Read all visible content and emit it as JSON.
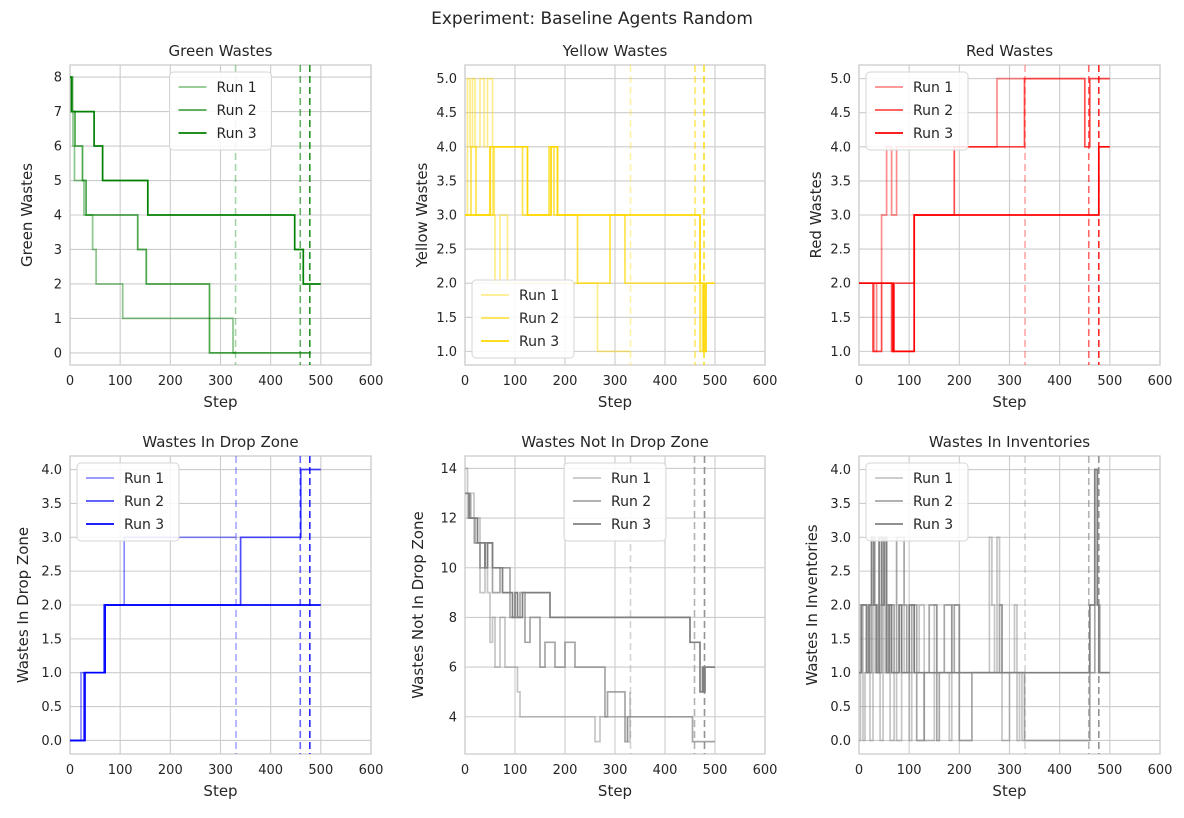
{
  "figure": {
    "suptitle": "Experiment: Baseline Agents Random"
  },
  "chart_data": [
    {
      "type": "line",
      "title": "Green Wastes",
      "xlabel": "Step",
      "ylabel": "Green Wastes",
      "xlim": [
        0,
        600
      ],
      "ylim": [
        -0.35,
        8.35
      ],
      "xticks": [
        0,
        100,
        200,
        300,
        400,
        500,
        600
      ],
      "yticks": [
        0,
        1,
        2,
        3,
        4,
        5,
        6,
        7,
        8
      ],
      "ytick_labels": [
        "0",
        "1",
        "2",
        "3",
        "4",
        "5",
        "6",
        "7",
        "8"
      ],
      "grid": true,
      "legend_position": "top-center",
      "series": [
        {
          "name": "Run 1",
          "color": "#008000",
          "opacity": 0.45,
          "x": [
            0,
            3,
            6,
            9,
            22,
            28,
            35,
            45,
            52,
            105,
            135,
            160,
            280,
            325,
            330
          ],
          "y": [
            8,
            7,
            6,
            5,
            5,
            4,
            4,
            3,
            2,
            1,
            1,
            1,
            1,
            0,
            0
          ]
        },
        {
          "name": "Run 2",
          "color": "#008000",
          "opacity": 0.7,
          "x": [
            0,
            5,
            10,
            20,
            25,
            32,
            135,
            152,
            278,
            460,
            480
          ],
          "y": [
            8,
            7,
            6,
            6,
            5,
            4,
            3,
            2,
            0,
            0,
            0
          ]
        },
        {
          "name": "Run 3",
          "color": "#008000",
          "opacity": 1.0,
          "x": [
            0,
            3,
            48,
            60,
            65,
            155,
            448,
            465,
            478,
            500
          ],
          "y": [
            8,
            7,
            6,
            6,
            5,
            4,
            3,
            2,
            2,
            2
          ]
        }
      ],
      "vlines": [
        {
          "x": 330,
          "color": "#008000",
          "opacity": 0.35
        },
        {
          "x": 459,
          "color": "#008000",
          "opacity": 0.6
        },
        {
          "x": 478,
          "color": "#008000",
          "opacity": 0.85
        }
      ]
    },
    {
      "type": "line",
      "title": "Yellow Wastes",
      "xlabel": "Step",
      "ylabel": "Yellow Wastes",
      "xlim": [
        0,
        600
      ],
      "ylim": [
        0.8,
        5.2
      ],
      "xticks": [
        0,
        100,
        200,
        300,
        400,
        500,
        600
      ],
      "yticks": [
        1.0,
        1.5,
        2.0,
        2.5,
        3.0,
        3.5,
        4.0,
        4.5,
        5.0
      ],
      "ytick_labels": [
        "1.0",
        "1.5",
        "2.0",
        "2.5",
        "3.0",
        "3.5",
        "4.0",
        "4.5",
        "5.0"
      ],
      "grid": true,
      "legend_position": "lower-left",
      "series": [
        {
          "name": "Run 1",
          "color": "#FFD700",
          "opacity": 0.45,
          "x": [
            0,
            5,
            10,
            15,
            20,
            30,
            38,
            45,
            55,
            60,
            70,
            85,
            170,
            185,
            265,
            300,
            330
          ],
          "y": [
            3,
            5,
            4,
            5,
            4,
            5,
            4,
            5,
            3,
            2,
            3,
            2,
            2,
            2,
            1,
            1,
            1
          ]
        },
        {
          "name": "Run 2",
          "color": "#FFD700",
          "opacity": 0.7,
          "x": [
            0,
            12,
            22,
            30,
            40,
            48,
            58,
            100,
            115,
            168,
            178,
            225,
            285,
            290,
            320,
            325,
            470,
            475,
            478
          ],
          "y": [
            3,
            4,
            3,
            3,
            3,
            3,
            4,
            4,
            3,
            4,
            3,
            2,
            2,
            3,
            2,
            2,
            1,
            2,
            2
          ]
        },
        {
          "name": "Run 3",
          "color": "#FFD700",
          "opacity": 1.0,
          "x": [
            0,
            20,
            30,
            50,
            95,
            110,
            125,
            162,
            172,
            178,
            185,
            460,
            470,
            478,
            482,
            500
          ],
          "y": [
            3,
            3,
            3,
            4,
            4,
            4,
            3,
            3,
            4,
            4,
            3,
            3,
            2,
            1,
            2,
            2
          ]
        }
      ],
      "vlines": [
        {
          "x": 331,
          "color": "#FFD700",
          "opacity": 0.35
        },
        {
          "x": 460,
          "color": "#FFD700",
          "opacity": 0.6
        },
        {
          "x": 478,
          "color": "#FFD700",
          "opacity": 0.85
        }
      ]
    },
    {
      "type": "line",
      "title": "Red Wastes",
      "xlabel": "Step",
      "ylabel": "Red Wastes",
      "xlim": [
        0,
        600
      ],
      "ylim": [
        0.8,
        5.2
      ],
      "xticks": [
        0,
        100,
        200,
        300,
        400,
        500,
        600
      ],
      "yticks": [
        1.0,
        1.5,
        2.0,
        2.5,
        3.0,
        3.5,
        4.0,
        4.5,
        5.0
      ],
      "ytick_labels": [
        "1.0",
        "1.5",
        "2.0",
        "2.5",
        "3.0",
        "3.5",
        "4.0",
        "4.5",
        "5.0"
      ],
      "grid": true,
      "legend_position": "top-left",
      "series": [
        {
          "name": "Run 1",
          "color": "#FF0000",
          "opacity": 0.45,
          "x": [
            0,
            25,
            30,
            35,
            45,
            55,
            65,
            75,
            85,
            110,
            190,
            275,
            330
          ],
          "y": [
            2,
            2,
            1,
            2,
            3,
            4,
            3,
            4,
            4,
            4,
            4,
            5,
            5
          ]
        },
        {
          "name": "Run 2",
          "color": "#FF0000",
          "opacity": 0.7,
          "x": [
            0,
            20,
            28,
            45,
            55,
            65,
            70,
            75,
            110,
            190,
            330,
            450,
            460,
            500
          ],
          "y": [
            2,
            2,
            1,
            2,
            2,
            1,
            2,
            2,
            3,
            4,
            5,
            4,
            5,
            5
          ]
        },
        {
          "name": "Run 3",
          "color": "#FF0000",
          "opacity": 1.0,
          "x": [
            0,
            20,
            30,
            60,
            68,
            110,
            470,
            478,
            500
          ],
          "y": [
            2,
            2,
            2,
            2,
            1,
            3,
            3,
            4,
            4
          ]
        }
      ],
      "vlines": [
        {
          "x": 331,
          "color": "#FF0000",
          "opacity": 0.35
        },
        {
          "x": 458,
          "color": "#FF0000",
          "opacity": 0.6
        },
        {
          "x": 478,
          "color": "#FF0000",
          "opacity": 0.85
        }
      ]
    },
    {
      "type": "line",
      "title": "Wastes In Drop Zone",
      "xlabel": "Step",
      "ylabel": "Wastes In Drop Zone",
      "xlim": [
        0,
        600
      ],
      "ylim": [
        -0.2,
        4.2
      ],
      "xticks": [
        0,
        100,
        200,
        300,
        400,
        500,
        600
      ],
      "yticks": [
        0.0,
        0.5,
        1.0,
        1.5,
        2.0,
        2.5,
        3.0,
        3.5,
        4.0
      ],
      "ytick_labels": [
        "0.0",
        "0.5",
        "1.0",
        "1.5",
        "2.0",
        "2.5",
        "3.0",
        "3.5",
        "4.0"
      ],
      "grid": true,
      "legend_position": "top-left",
      "series": [
        {
          "name": "Run 1",
          "color": "#0000FF",
          "opacity": 0.45,
          "x": [
            0,
            22,
            70,
            108,
            330
          ],
          "y": [
            0,
            1,
            2,
            3,
            3
          ]
        },
        {
          "name": "Run 2",
          "color": "#0000FF",
          "opacity": 0.7,
          "x": [
            0,
            28,
            68,
            340,
            460,
            500
          ],
          "y": [
            0,
            1,
            2,
            3,
            4,
            4
          ]
        },
        {
          "name": "Run 3",
          "color": "#0000FF",
          "opacity": 1.0,
          "x": [
            0,
            30,
            70,
            500
          ],
          "y": [
            0,
            1,
            2,
            2
          ]
        }
      ],
      "vlines": [
        {
          "x": 331,
          "color": "#0000FF",
          "opacity": 0.35
        },
        {
          "x": 459,
          "color": "#0000FF",
          "opacity": 0.6
        },
        {
          "x": 478,
          "color": "#0000FF",
          "opacity": 0.85
        }
      ]
    },
    {
      "type": "line",
      "title": "Wastes Not In Drop Zone",
      "xlabel": "Step",
      "ylabel": "Wastes Not In Drop Zone",
      "xlim": [
        0,
        600
      ],
      "ylim": [
        2.5,
        14.5
      ],
      "xticks": [
        0,
        100,
        200,
        300,
        400,
        500,
        600
      ],
      "yticks": [
        4,
        6,
        8,
        10,
        12,
        14
      ],
      "ytick_labels": [
        "4",
        "6",
        "8",
        "10",
        "12",
        "14"
      ],
      "grid": true,
      "legend_position": "top-center",
      "series": [
        {
          "name": "Run 1",
          "color": "#808080",
          "opacity": 0.45,
          "x": [
            0,
            5,
            12,
            18,
            25,
            30,
            40,
            45,
            50,
            55,
            60,
            70,
            80,
            90,
            105,
            110,
            260,
            270,
            325,
            330
          ],
          "y": [
            14,
            12,
            13,
            11,
            12,
            9,
            11,
            9,
            7,
            8,
            6,
            8,
            6,
            6,
            5,
            4,
            3,
            4,
            3,
            5
          ]
        },
        {
          "name": "Run 2",
          "color": "#808080",
          "opacity": 0.7,
          "x": [
            0,
            10,
            20,
            30,
            40,
            55,
            70,
            90,
            110,
            120,
            130,
            150,
            160,
            180,
            200,
            220,
            280,
            285,
            290,
            320,
            325,
            330,
            455,
            465,
            500
          ],
          "y": [
            13,
            12,
            11,
            10,
            11,
            9,
            10,
            8,
            9,
            7,
            8,
            6,
            7,
            6,
            7,
            6,
            4,
            5,
            5,
            3,
            4,
            4,
            3,
            3,
            3
          ]
        },
        {
          "name": "Run 3",
          "color": "#808080",
          "opacity": 1.0,
          "x": [
            0,
            8,
            12,
            25,
            40,
            45,
            55,
            75,
            95,
            100,
            105,
            115,
            170,
            180,
            450,
            470,
            475,
            478,
            480,
            500
          ],
          "y": [
            13,
            12,
            12,
            11,
            10,
            11,
            10,
            9,
            8,
            9,
            8,
            9,
            8,
            8,
            7,
            5,
            6,
            5,
            6,
            6
          ]
        }
      ],
      "vlines": [
        {
          "x": 331,
          "color": "#808080",
          "opacity": 0.35
        },
        {
          "x": 459,
          "color": "#808080",
          "opacity": 0.6
        },
        {
          "x": 479,
          "color": "#808080",
          "opacity": 0.85
        }
      ]
    },
    {
      "type": "line",
      "title": "Wastes In Inventories",
      "xlabel": "Step",
      "ylabel": "Wastes In Inventories",
      "xlim": [
        0,
        600
      ],
      "ylim": [
        -0.2,
        4.2
      ],
      "xticks": [
        0,
        100,
        200,
        300,
        400,
        500,
        600
      ],
      "yticks": [
        0.0,
        0.5,
        1.0,
        1.5,
        2.0,
        2.5,
        3.0,
        3.5,
        4.0
      ],
      "ytick_labels": [
        "0.0",
        "0.5",
        "1.0",
        "1.5",
        "2.0",
        "2.5",
        "3.0",
        "3.5",
        "4.0"
      ],
      "grid": true,
      "legend_position": "top-left",
      "series": [
        {
          "name": "Run 1",
          "color": "#808080",
          "opacity": 0.45,
          "x": [
            0,
            3,
            8,
            12,
            18,
            22,
            28,
            32,
            38,
            42,
            48,
            52,
            58,
            62,
            70,
            75,
            85,
            90,
            100,
            105,
            120,
            130,
            150,
            155,
            180,
            185,
            200,
            260,
            265,
            270,
            275,
            280,
            285,
            300,
            310,
            315,
            320,
            325,
            330
          ],
          "y": [
            0,
            2,
            0,
            1,
            2,
            0,
            3,
            1,
            2,
            0,
            3,
            1,
            2,
            0,
            1,
            0,
            2,
            1,
            0,
            1,
            2,
            0,
            2,
            1,
            0,
            2,
            1,
            3,
            2,
            1,
            3,
            2,
            0,
            1,
            2,
            0,
            1,
            0,
            0
          ]
        },
        {
          "name": "Run 2",
          "color": "#808080",
          "opacity": 0.7,
          "x": [
            0,
            5,
            15,
            25,
            35,
            45,
            55,
            70,
            75,
            90,
            95,
            105,
            115,
            130,
            140,
            155,
            160,
            170,
            185,
            190,
            200,
            225,
            230,
            280,
            285,
            290,
            330,
            340,
            450,
            460,
            470,
            475,
            480,
            500
          ],
          "y": [
            1,
            2,
            1,
            2,
            1,
            3,
            2,
            1,
            3,
            2,
            1,
            2,
            0,
            1,
            2,
            0,
            1,
            2,
            1,
            2,
            0,
            1,
            1,
            2,
            1,
            1,
            0,
            0,
            0,
            1,
            4,
            2,
            1,
            1
          ]
        },
        {
          "name": "Run 3",
          "color": "#808080",
          "opacity": 1.0,
          "x": [
            0,
            5,
            15,
            20,
            25,
            30,
            35,
            40,
            45,
            50,
            55,
            60,
            65,
            80,
            85,
            95,
            100,
            110,
            155,
            160,
            450,
            460,
            470,
            475,
            478,
            485,
            500
          ],
          "y": [
            1,
            2,
            1,
            2,
            3,
            2,
            1,
            3,
            2,
            3,
            1,
            2,
            1,
            2,
            1,
            1,
            2,
            1,
            1,
            1,
            1,
            2,
            4,
            2,
            1,
            1,
            1
          ]
        }
      ],
      "vlines": [
        {
          "x": 331,
          "color": "#808080",
          "opacity": 0.35
        },
        {
          "x": 458,
          "color": "#808080",
          "opacity": 0.6
        },
        {
          "x": 478,
          "color": "#808080",
          "opacity": 0.85
        }
      ]
    }
  ]
}
